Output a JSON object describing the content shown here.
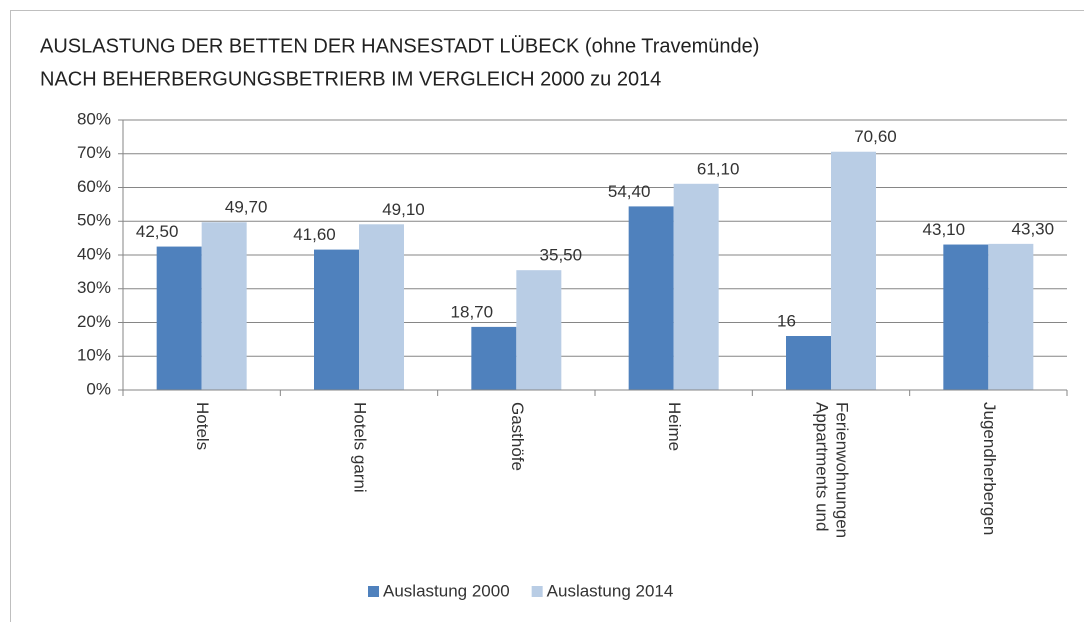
{
  "chart_data": {
    "type": "bar",
    "title": [
      "AUSLASTUNG DER BETTEN DER HANSESTADT LÜBECK (ohne Travemünde)",
      "NACH BEHERBERGUNGSBETRIERB IM VERGLEICH 2000 zu 2014"
    ],
    "categories": [
      [
        "Hotels"
      ],
      [
        "Hotels garni"
      ],
      [
        "Gasthöfe"
      ],
      [
        "Heime"
      ],
      [
        "Appartments und",
        "Ferienwohnungen"
      ],
      [
        "Jugendherbergen"
      ]
    ],
    "series": [
      {
        "name": "Auslastung 2000",
        "color": "#4f81bd",
        "values": [
          42.5,
          41.6,
          18.7,
          54.4,
          16,
          43.1
        ],
        "value_labels": [
          "42,50",
          "41,60",
          "18,70",
          "54,40",
          "16",
          "43,10"
        ]
      },
      {
        "name": "Auslastung 2014",
        "color": "#b9cde5",
        "values": [
          49.7,
          49.1,
          35.5,
          61.1,
          70.6,
          43.3
        ],
        "value_labels": [
          "49,70",
          "49,10",
          "35,50",
          "61,10",
          "70,60",
          "43,30"
        ]
      }
    ],
    "ylim": [
      0,
      80
    ],
    "yticks": [
      {
        "value": 0,
        "label": "0%"
      },
      {
        "value": 10,
        "label": "10%"
      },
      {
        "value": 20,
        "label": "20%"
      },
      {
        "value": 30,
        "label": "30%"
      },
      {
        "value": 40,
        "label": "40%"
      },
      {
        "value": 50,
        "label": "50%"
      },
      {
        "value": 60,
        "label": "60%"
      },
      {
        "value": 70,
        "label": "70%"
      },
      {
        "value": 80,
        "label": "80%"
      }
    ],
    "grid": true,
    "legend": "bottom"
  }
}
